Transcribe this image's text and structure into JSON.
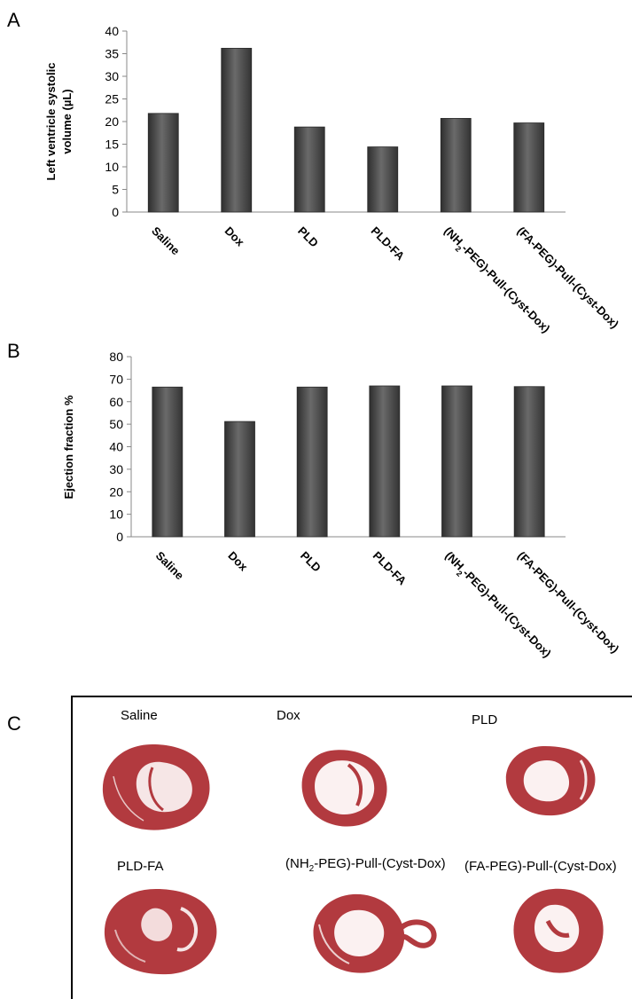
{
  "panels": {
    "a": "A",
    "b": "B",
    "c": "C"
  },
  "chart_data": [
    {
      "type": "bar",
      "panel": "A",
      "categories": [
        "Saline",
        "Dox",
        "PLD",
        "PLD-FA",
        "(NH2-PEG)-Pull-(Cyst-Dox)",
        "(FA-PEG)-Pull-(Cyst-Dox)"
      ],
      "values": [
        21.8,
        36.2,
        18.8,
        14.4,
        20.7,
        19.7
      ],
      "ylabel_line1": "Left ventricle systolic",
      "ylabel_line2": "volume (µL)",
      "ylim": [
        0,
        40
      ],
      "yticks": [
        "0",
        "5",
        "10",
        "15",
        "20",
        "25",
        "30",
        "35",
        "40"
      ],
      "grid": false,
      "bar_color": "#4a4a4a"
    },
    {
      "type": "bar",
      "panel": "B",
      "categories": [
        "Saline",
        "Dox",
        "PLD",
        "PLD-FA",
        "(NH2-PEG)-Pull-(Cyst-Dox)",
        "(FA-PEG)-Pull-(Cyst-Dox)"
      ],
      "values": [
        66.5,
        51.2,
        66.5,
        67.0,
        67.0,
        66.7
      ],
      "ylabel": "Ejection fraction %",
      "ylim": [
        0,
        80
      ],
      "yticks": [
        "0",
        "10",
        "20",
        "30",
        "40",
        "50",
        "60",
        "70",
        "80"
      ],
      "grid": false,
      "bar_color": "#4a4a4a"
    }
  ],
  "histology": {
    "tissue_color": "#b23a3f",
    "labels": [
      "Saline",
      "Dox",
      "PLD",
      "PLD-FA",
      "(NH2-PEG)-Pull-(Cyst-Dox)",
      "(FA-PEG)-Pull-(Cyst-Dox)"
    ]
  }
}
